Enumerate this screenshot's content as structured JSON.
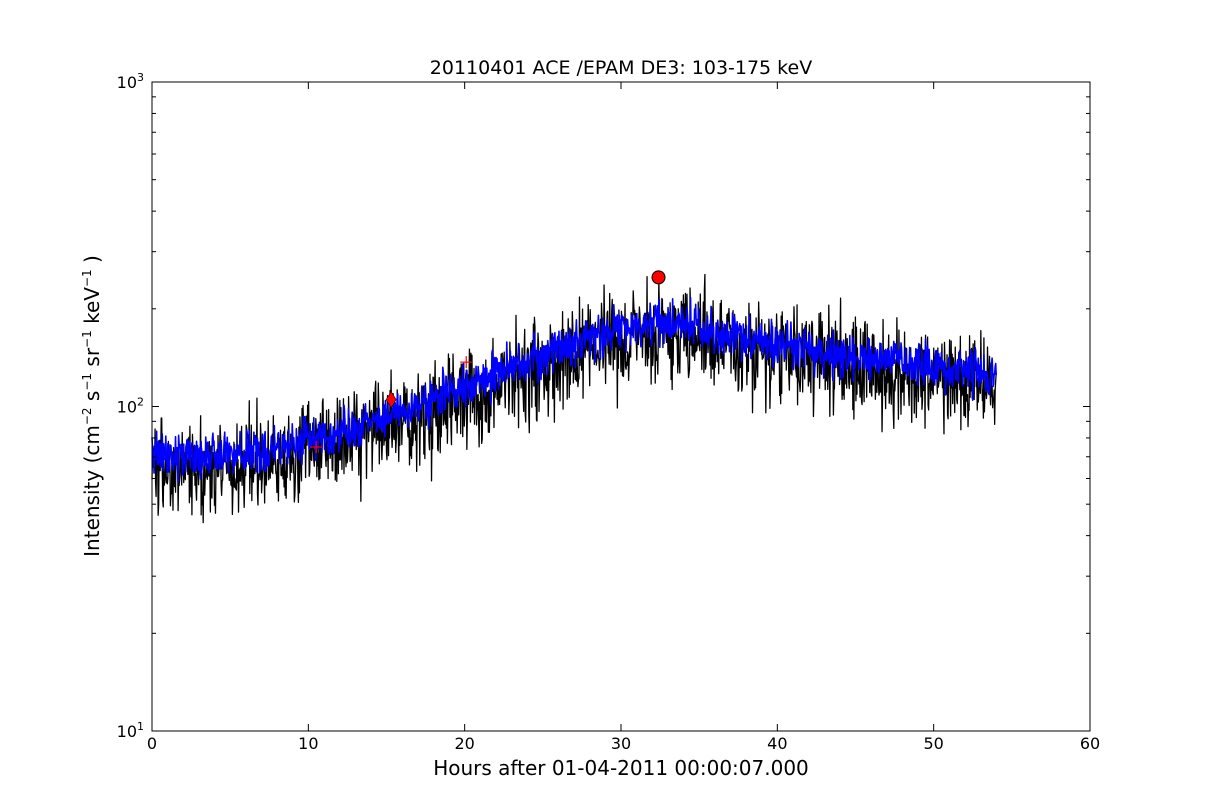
{
  "chart_data": {
    "type": "line",
    "title": "20110401 ACE /EPAM DE3: 103-175 keV",
    "xlabel": "Hours after 01-04-2011 00:00:07.000",
    "ylabel": {
      "prefix": "Intensity (cm",
      "sup1": "−2",
      "part2": " s",
      "sup2": "−1",
      "part3": " sr",
      "sup3": "−1",
      "part4": " keV",
      "sup4": "−1",
      "suffix": " )"
    },
    "xlim": [
      0,
      60
    ],
    "ylim": [
      10,
      1000
    ],
    "yscale": "log",
    "grid": false,
    "x_ticks": [
      {
        "value": 0,
        "label": "0"
      },
      {
        "value": 10,
        "label": "10"
      },
      {
        "value": 20,
        "label": "20"
      },
      {
        "value": 30,
        "label": "30"
      },
      {
        "value": 40,
        "label": "40"
      },
      {
        "value": 50,
        "label": "50"
      },
      {
        "value": 60,
        "label": "60"
      }
    ],
    "y_ticks": [
      {
        "value": 10,
        "base": "10",
        "exp": "1"
      },
      {
        "value": 100,
        "base": "10",
        "exp": "2"
      },
      {
        "value": 1000,
        "base": "10",
        "exp": "3"
      }
    ],
    "series": [
      {
        "role": "raw",
        "color": "#000000",
        "x_range": [
          0,
          54
        ],
        "trend": [
          [
            0,
            72
          ],
          [
            3,
            70
          ],
          [
            6,
            72
          ],
          [
            9,
            76
          ],
          [
            12,
            83
          ],
          [
            15,
            92
          ],
          [
            18,
            105
          ],
          [
            21,
            120
          ],
          [
            24,
            138
          ],
          [
            27,
            158
          ],
          [
            30,
            175
          ],
          [
            32,
            185
          ],
          [
            34,
            180
          ],
          [
            36,
            168
          ],
          [
            40,
            155
          ],
          [
            44,
            145
          ],
          [
            48,
            138
          ],
          [
            52,
            128
          ],
          [
            54,
            122
          ]
        ],
        "noise_factor_range": [
          0.55,
          1.55
        ]
      },
      {
        "role": "smoothed",
        "color": "#0000ff",
        "x_range": [
          0,
          54
        ],
        "trend": [
          [
            0,
            72
          ],
          [
            3,
            70
          ],
          [
            6,
            72
          ],
          [
            9,
            76
          ],
          [
            12,
            83
          ],
          [
            15,
            92
          ],
          [
            18,
            105
          ],
          [
            21,
            120
          ],
          [
            24,
            138
          ],
          [
            27,
            158
          ],
          [
            30,
            175
          ],
          [
            32,
            185
          ],
          [
            34,
            180
          ],
          [
            36,
            168
          ],
          [
            40,
            155
          ],
          [
            44,
            145
          ],
          [
            48,
            138
          ],
          [
            52,
            128
          ],
          [
            54,
            122
          ]
        ],
        "noise_factor_range": [
          0.8,
          1.25
        ]
      }
    ],
    "markers": [
      {
        "shape": "plus",
        "x": 10.5,
        "y": 75,
        "color": "#ff0000"
      },
      {
        "shape": "diamond",
        "x": 15.3,
        "y": 105,
        "color": "#ff0000"
      },
      {
        "shape": "plus",
        "x": 20.1,
        "y": 137,
        "color": "#ff0000"
      },
      {
        "shape": "circle",
        "x": 32.4,
        "y": 250,
        "color": "#ff0000"
      }
    ]
  }
}
